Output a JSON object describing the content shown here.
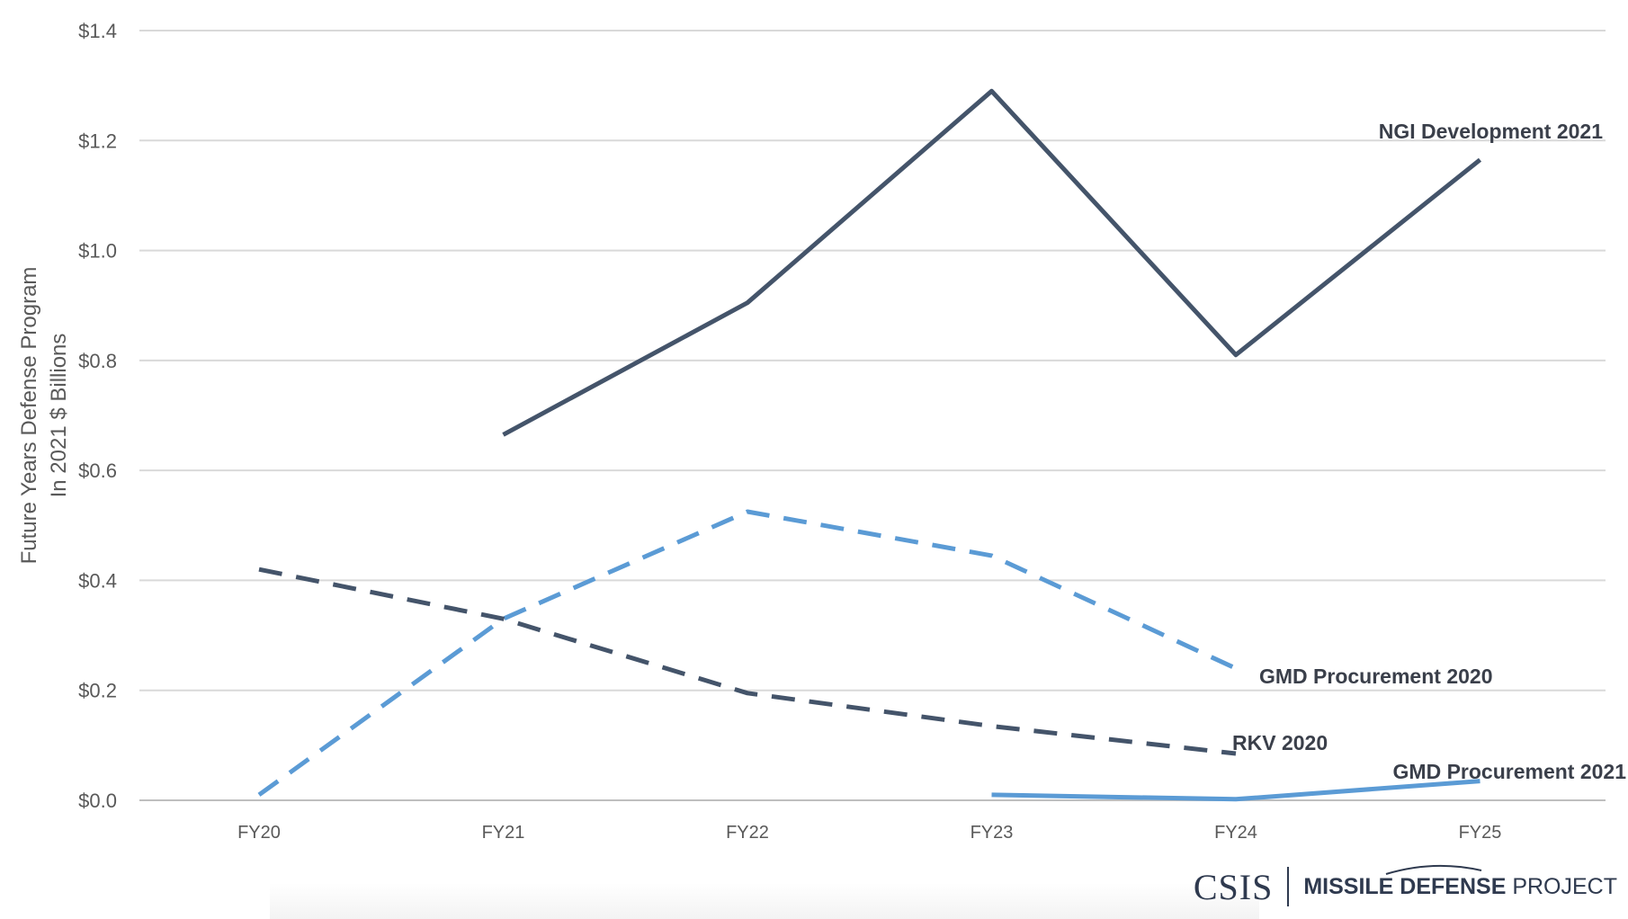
{
  "chart_data": {
    "type": "line",
    "title": "",
    "ylabel": [
      "Future Years Defense Program",
      "In 2021 $ Billions"
    ],
    "xlabel": "",
    "categories": [
      "FY20",
      "FY21",
      "FY22",
      "FY23",
      "FY24",
      "FY25"
    ],
    "yticks": [
      "$0.0",
      "$0.2",
      "$0.4",
      "$0.6",
      "$0.8",
      "$1.0",
      "$1.2",
      "$1.4"
    ],
    "ylim": [
      0,
      1.4
    ],
    "grid": true,
    "legend": "inline labels at line ends",
    "series": [
      {
        "name": "NGI Development 2021",
        "values": [
          null,
          0.665,
          0.905,
          1.29,
          0.81,
          1.165
        ],
        "color": "#44546a",
        "style": "solid"
      },
      {
        "name": "GMD Procurement 2020",
        "values": [
          0.01,
          0.33,
          0.525,
          0.445,
          0.24,
          null
        ],
        "color": "#5b9bd5",
        "style": "dashed"
      },
      {
        "name": "RKV 2020",
        "values": [
          0.42,
          0.33,
          0.195,
          0.135,
          0.085,
          null
        ],
        "color": "#44546a",
        "style": "dashed"
      },
      {
        "name": "GMD Procurement 2021",
        "values": [
          null,
          null,
          null,
          0.01,
          0.002,
          0.035
        ],
        "color": "#5b9bd5",
        "style": "solid"
      }
    ]
  },
  "branding": {
    "csis": "CSIS",
    "project_bold": "MISSILE DEFENSE",
    "project_rest": " PROJECT"
  }
}
